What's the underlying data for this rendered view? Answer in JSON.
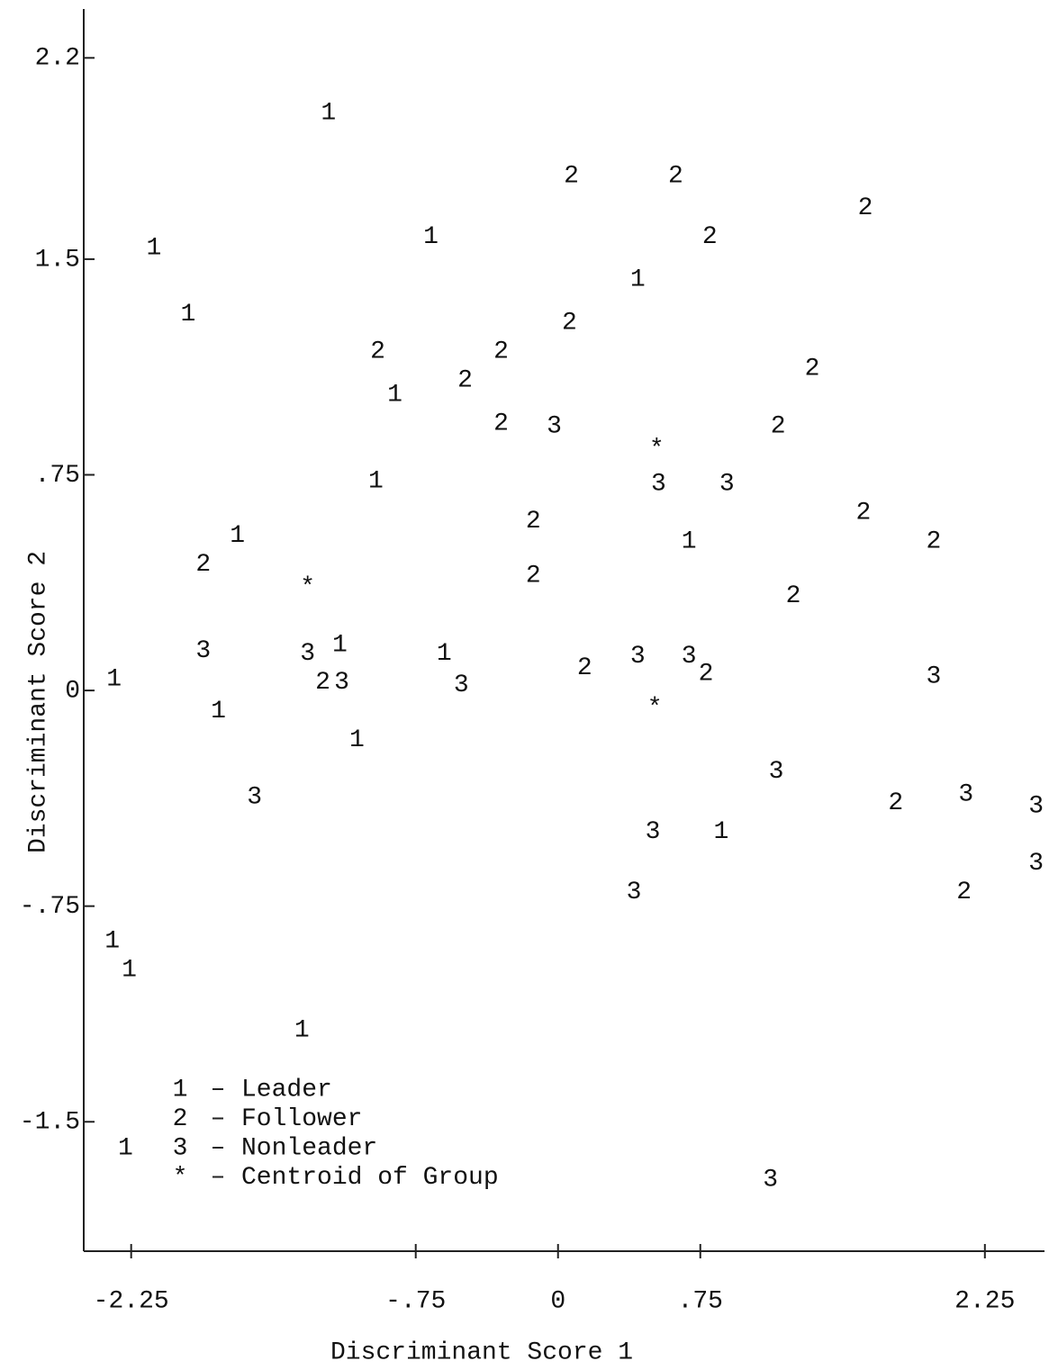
{
  "chart_data": {
    "type": "scatter",
    "xlabel": "Discriminant Score 1",
    "ylabel": "Discriminant Score 2",
    "xlim": [
      -2.5,
      2.55
    ],
    "ylim": [
      -1.95,
      2.37
    ],
    "xticks": [
      -2.25,
      {
        "value": -0.75,
        "label": "-.75"
      },
      0,
      {
        "value": 0.75,
        "label": ".75"
      },
      2.25
    ],
    "yticks": [
      {
        "value": 2.2,
        "label": "2.2"
      },
      1.5,
      {
        "value": 0.75,
        "label": ".75"
      },
      0,
      {
        "value": -0.75,
        "label": "-.75"
      },
      -1.5
    ],
    "series": [
      {
        "name": "Leader",
        "marker": "1",
        "color": "#111111",
        "x": [
          -1.21,
          -2.13,
          -0.67,
          0.42,
          -1.95,
          -0.86,
          -0.96,
          -1.69,
          0.69,
          -1.15,
          -0.6,
          -2.34,
          -1.79,
          -1.06,
          0.86,
          -2.35,
          -2.26,
          -1.35,
          -2.28
        ],
        "y": [
          2.01,
          1.54,
          1.58,
          1.43,
          1.31,
          1.03,
          0.73,
          0.54,
          0.52,
          0.16,
          0.13,
          0.04,
          -0.07,
          -0.17,
          -0.49,
          -0.87,
          -0.97,
          -1.18,
          -1.59
        ]
      },
      {
        "name": "Follower",
        "marker": "2",
        "color": "#111111",
        "x": [
          0.07,
          0.62,
          1.62,
          0.8,
          0.06,
          -0.95,
          -0.3,
          -0.49,
          1.34,
          -0.3,
          1.16,
          -0.13,
          1.61,
          1.98,
          -1.87,
          -0.13,
          1.24,
          0.14,
          0.78,
          -1.24,
          1.78,
          2.14
        ],
        "y": [
          1.79,
          1.79,
          1.68,
          1.58,
          1.28,
          1.18,
          1.18,
          1.08,
          1.12,
          0.93,
          0.92,
          0.59,
          0.62,
          0.52,
          0.44,
          0.4,
          0.33,
          0.08,
          0.06,
          0.03,
          -0.39,
          -0.7
        ]
      },
      {
        "name": "Nonleader",
        "marker": "3",
        "color": "#111111",
        "x": [
          -0.02,
          0.53,
          0.89,
          -1.87,
          -1.32,
          -1.14,
          -0.51,
          0.42,
          0.69,
          1.98,
          1.15,
          -1.6,
          2.15,
          2.52,
          0.5,
          2.52,
          0.4,
          1.12
        ],
        "y": [
          0.92,
          0.72,
          0.72,
          0.14,
          0.13,
          0.03,
          0.02,
          0.12,
          0.12,
          0.05,
          -0.28,
          -0.37,
          -0.36,
          -0.4,
          -0.49,
          -0.6,
          -0.7,
          -1.7
        ]
      },
      {
        "name": "Centroid of Group",
        "marker": "*",
        "color": "#111111",
        "x": [
          0.52,
          -1.32,
          0.51
        ],
        "y": [
          0.84,
          0.36,
          -0.06
        ]
      }
    ]
  }
}
